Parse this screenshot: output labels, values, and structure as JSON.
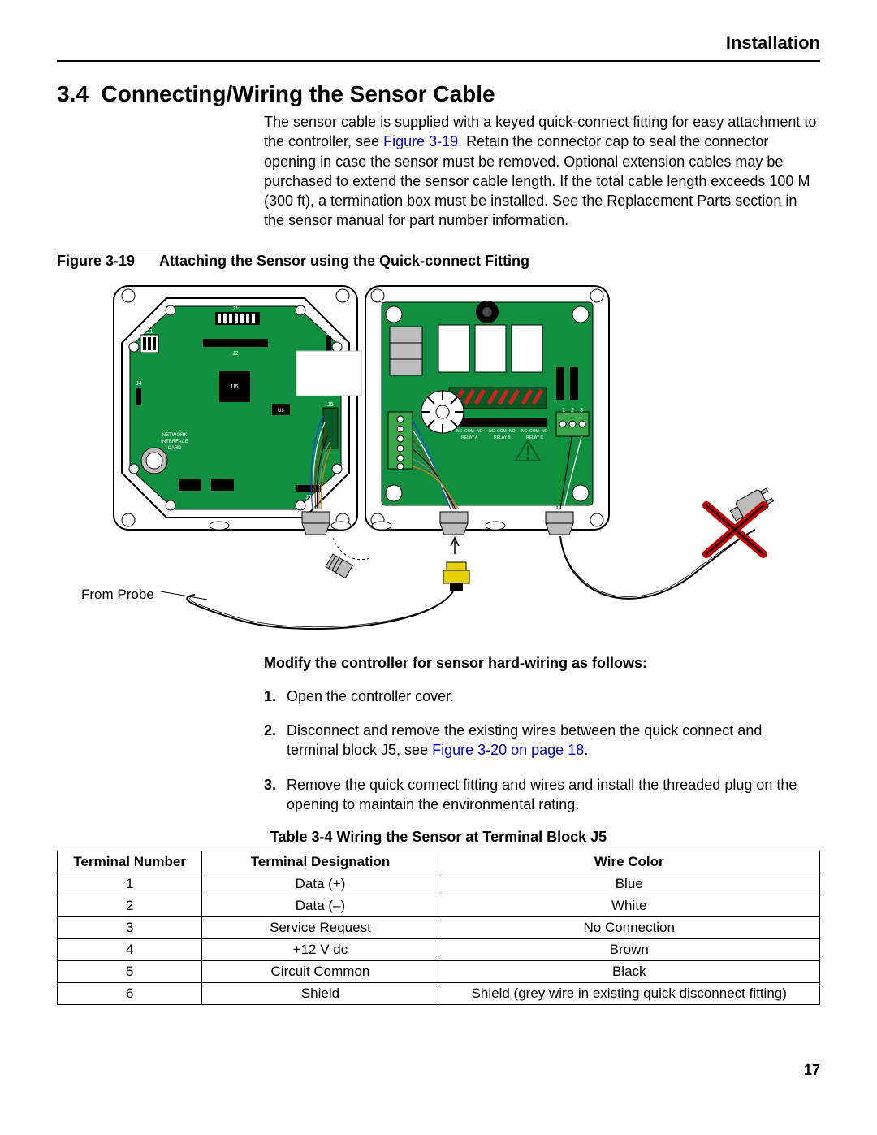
{
  "header": {
    "label": "Installation"
  },
  "section": {
    "number": "3.4",
    "title": "Connecting/Wiring the Sensor Cable",
    "intro_a": "The sensor cable is supplied with a keyed quick-connect fitting for easy attachment to the controller, see ",
    "intro_link": "Figure 3-19",
    "intro_b": ". Retain the connector cap to seal the connector opening in case the sensor must be removed. Optional extension cables may be purchased to extend the sensor cable length. If the total cable length exceeds 100 M (300 ft), a termination box must be installed. See the Replacement Parts section in the sensor manual for part number information."
  },
  "figure": {
    "number": "Figure 3-19",
    "caption": "Attaching the Sensor using the Quick-connect Fitting",
    "probe_label": "From Probe",
    "colors": {
      "board_green": "#0f8f3f",
      "panel_stroke": "#000000",
      "panel_fill": "#ffffff",
      "dark_green": "#065a25",
      "gray": "#bcbcbc",
      "red_x": "#c00000",
      "connector_yellow": "#e6d100",
      "terminal_green": "#3aa64a",
      "red_diag": "#d02020"
    },
    "pcb_labels": [
      "J1",
      "S1",
      "J2",
      "J3",
      "U5",
      "J4",
      "U8",
      "J5",
      "J6",
      "NETWORK",
      "INTERFACE",
      "CARD"
    ],
    "relay_labels": [
      "NC",
      "COM",
      "NO",
      "RELAY A",
      "RELAY B",
      "RELAY C",
      "1",
      "2",
      "3"
    ]
  },
  "modify": {
    "heading": "Modify the controller for sensor hard-wiring as follows:",
    "steps": [
      {
        "pre": "Open the controller cover."
      },
      {
        "pre": "Disconnect and remove the existing wires between the quick connect and terminal block J5, see ",
        "link": "Figure 3-20 on page 18",
        "post": "."
      },
      {
        "pre": "Remove the quick connect fitting and wires and install the threaded plug on the opening to maintain the environmental rating."
      }
    ]
  },
  "table": {
    "caption": "Table 3-4 Wiring the Sensor at Terminal Block J5",
    "columns": [
      "Terminal Number",
      "Terminal Designation",
      "Wire Color"
    ],
    "col_widths": [
      "19%",
      "31%",
      "50%"
    ],
    "rows": [
      [
        "1",
        "Data (+)",
        "Blue"
      ],
      [
        "2",
        "Data (–)",
        "White"
      ],
      [
        "3",
        "Service Request",
        "No Connection"
      ],
      [
        "4",
        "+12 V dc",
        "Brown"
      ],
      [
        "5",
        "Circuit Common",
        "Black"
      ],
      [
        "6",
        "Shield",
        "Shield (grey wire in existing quick disconnect fitting)"
      ]
    ]
  },
  "page_number": "17"
}
